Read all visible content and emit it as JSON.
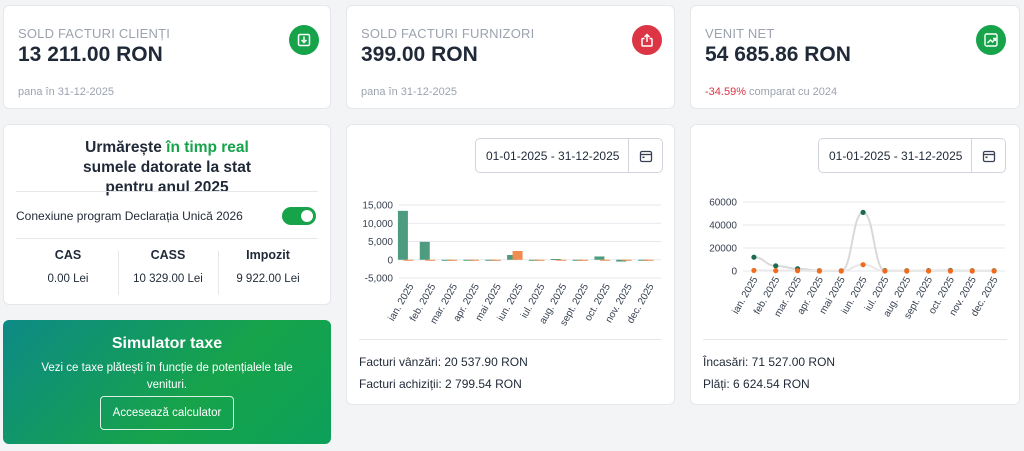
{
  "stats": [
    {
      "label": "SOLD FACTURI CLIENȚI",
      "value": "13 211.00 RON",
      "sub": "pana în 31-12-2025",
      "icon": "download-icon",
      "color": "#16a34a"
    },
    {
      "label": "SOLD FACTURI FURNIZORI",
      "value": "399.00 RON",
      "sub": "pana în 31-12-2025",
      "icon": "upload-icon",
      "color": "#dc3545"
    },
    {
      "label": "VENIT NET",
      "value": "54 685.86 RON",
      "sub_change": "-34.59%",
      "sub_rest": " comparat cu 2024",
      "icon": "trending-up-icon",
      "color": "#16a34a"
    }
  ],
  "tax": {
    "title_pre": "Urmărește ",
    "title_hl": "în timp real",
    "title_post": " sumele datorate la stat pentru anul 2025",
    "connection_label": "Conexiune program Declarația Unică 2026",
    "connection_on": true,
    "cols": [
      {
        "name": "CAS",
        "value": "0.00 Lei"
      },
      {
        "name": "CASS",
        "value": "10 329.00 Lei"
      },
      {
        "name": "Impozit",
        "value": "9 922.00 Lei"
      }
    ]
  },
  "simulator": {
    "title": "Simulator taxe",
    "desc": "Vezi ce taxe plătești în funcție de potențialele tale venituri.",
    "button": "Accesează calculator"
  },
  "invoices_panel": {
    "date_range": "01-01-2025 - 31-12-2025",
    "sales_line": "Facturi vânzări: 20 537.90 RON",
    "purchases_line": "Facturi achiziții: 2 799.54 RON"
  },
  "cash_panel": {
    "date_range": "01-01-2025 - 31-12-2025",
    "income_line": "Încasări: 71 527.00 RON",
    "payments_line": "Plăți: 6 624.54 RON"
  },
  "chart_data": [
    {
      "type": "bar",
      "categories": [
        "ian. 2025",
        "feb. 2025",
        "mar. 2025",
        "apr. 2025",
        "mai 2025",
        "iun. 2025",
        "iul. 2025",
        "aug. 2025",
        "sept. 2025",
        "oct. 2025",
        "nov. 2025",
        "dec. 2025"
      ],
      "y_ticks": [
        "15,000",
        "10,000",
        "5,000",
        "0",
        "-5,000"
      ],
      "ylim": [
        -5000,
        15000
      ],
      "grid": true,
      "series": [
        {
          "color": "#4e9c7f",
          "values": [
            13400,
            4900,
            0,
            0,
            0,
            1300,
            0,
            200,
            0,
            900,
            -500,
            0
          ]
        },
        {
          "color": "#f08c4f",
          "values": [
            0,
            0,
            0,
            0,
            0,
            2400,
            0,
            0,
            0,
            0,
            0,
            0
          ]
        }
      ]
    },
    {
      "type": "line",
      "categories": [
        "ian. 2025",
        "feb. 2025",
        "mar. 2025",
        "apr. 2025",
        "mai 2025",
        "iun. 2025",
        "iul. 2025",
        "aug. 2025",
        "sept. 2025",
        "oct. 2025",
        "nov. 2025",
        "dec. 2025"
      ],
      "y_ticks": [
        "60000",
        "40000",
        "20000",
        "0"
      ],
      "ylim": [
        0,
        60000
      ],
      "grid": true,
      "series": [
        {
          "color": "#1a6b4f",
          "values": [
            12000,
            4500,
            2000,
            200,
            100,
            51000,
            300,
            200,
            300,
            500,
            200,
            200
          ]
        },
        {
          "color": "#f26b1d",
          "values": [
            500,
            300,
            300,
            0,
            0,
            5500,
            0,
            0,
            0,
            0,
            0,
            0
          ]
        }
      ]
    }
  ]
}
